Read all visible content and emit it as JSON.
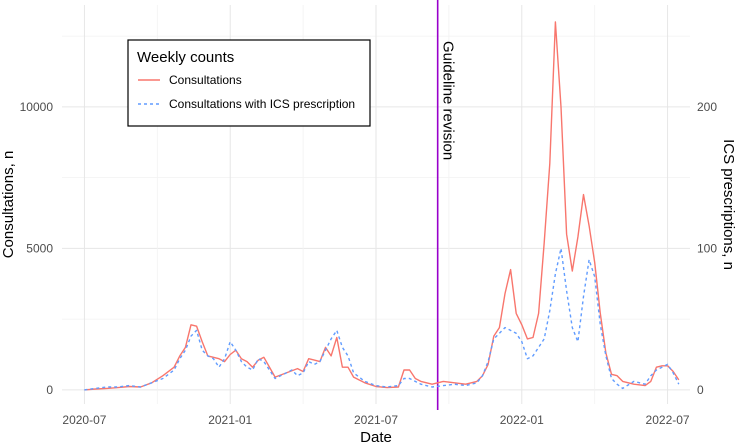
{
  "chart_data": {
    "type": "line",
    "x_ticks": [
      {
        "label": "2020-07",
        "t": 0
      },
      {
        "label": "2021-01",
        "t": 26
      },
      {
        "label": "2021-07",
        "t": 52
      },
      {
        "label": "2022-01",
        "t": 78
      },
      {
        "label": "2022-07",
        "t": 104
      }
    ],
    "xlabel": "Date",
    "ylabel_left": "Consultations, n",
    "ylabel_right": "ICS prescriptions, n",
    "y_left_ticks": [
      0,
      5000,
      10000
    ],
    "y_left_tick_labels": [
      "0",
      "5000",
      "10000"
    ],
    "y_right_ticks": [
      0,
      100,
      200
    ],
    "y_right_tick_labels": [
      "0",
      "100",
      "200"
    ],
    "ylim_left": [
      -500,
      13600
    ],
    "ylim_right": [
      -10,
      272
    ],
    "xlim": [
      -4,
      108
    ],
    "vline": {
      "t": 63,
      "label": "Guideline revision",
      "color": "#9900cc"
    },
    "legend": {
      "title": "Weekly counts",
      "placement": "top-left",
      "entries": [
        {
          "label": "Consultations",
          "color": "#f8766d",
          "style": "solid"
        },
        {
          "label": "Consultations with ICS prescription",
          "color": "#619cff",
          "style": "dashed"
        }
      ]
    },
    "series": [
      {
        "name": "Consultations",
        "axis": "left",
        "color": "#f8766d",
        "style": "solid",
        "points": [
          [
            0,
            0
          ],
          [
            2,
            30
          ],
          [
            4,
            50
          ],
          [
            6,
            80
          ],
          [
            8,
            120
          ],
          [
            10,
            100
          ],
          [
            12,
            250
          ],
          [
            14,
            500
          ],
          [
            16,
            800
          ],
          [
            17,
            1200
          ],
          [
            18,
            1500
          ],
          [
            19,
            2300
          ],
          [
            20,
            2250
          ],
          [
            21,
            1700
          ],
          [
            22,
            1200
          ],
          [
            24,
            1100
          ],
          [
            25,
            1000
          ],
          [
            26,
            1250
          ],
          [
            27,
            1400
          ],
          [
            28,
            1100
          ],
          [
            29,
            1000
          ],
          [
            30,
            800
          ],
          [
            31,
            1050
          ],
          [
            32,
            1150
          ],
          [
            34,
            450
          ],
          [
            36,
            600
          ],
          [
            38,
            750
          ],
          [
            39,
            650
          ],
          [
            40,
            1100
          ],
          [
            41,
            1050
          ],
          [
            42,
            1000
          ],
          [
            43,
            1500
          ],
          [
            44,
            1200
          ],
          [
            45,
            1850
          ],
          [
            46,
            800
          ],
          [
            47,
            800
          ],
          [
            48,
            450
          ],
          [
            50,
            250
          ],
          [
            52,
            120
          ],
          [
            54,
            80
          ],
          [
            56,
            100
          ],
          [
            57,
            700
          ],
          [
            58,
            700
          ],
          [
            59,
            400
          ],
          [
            60,
            300
          ],
          [
            62,
            200
          ],
          [
            64,
            300
          ],
          [
            66,
            250
          ],
          [
            68,
            200
          ],
          [
            70,
            300
          ],
          [
            71,
            500
          ],
          [
            72,
            900
          ],
          [
            73,
            1900
          ],
          [
            74,
            2200
          ],
          [
            75,
            3400
          ],
          [
            76,
            4250
          ],
          [
            77,
            2700
          ],
          [
            78,
            2300
          ],
          [
            79,
            1800
          ],
          [
            80,
            1850
          ],
          [
            81,
            2700
          ],
          [
            82,
            5200
          ],
          [
            83,
            8000
          ],
          [
            84,
            13000
          ],
          [
            85,
            10000
          ],
          [
            86,
            5500
          ],
          [
            87,
            4200
          ],
          [
            88,
            5400
          ],
          [
            89,
            6900
          ],
          [
            90,
            5800
          ],
          [
            91,
            4500
          ],
          [
            92,
            2700
          ],
          [
            93,
            1300
          ],
          [
            94,
            550
          ],
          [
            95,
            500
          ],
          [
            96,
            300
          ],
          [
            98,
            200
          ],
          [
            100,
            150
          ],
          [
            101,
            300
          ],
          [
            102,
            800
          ],
          [
            103,
            850
          ],
          [
            104,
            850
          ],
          [
            105,
            650
          ],
          [
            106,
            350
          ]
        ]
      },
      {
        "name": "Consultations with ICS prescription",
        "axis": "right",
        "color": "#619cff",
        "style": "dashed",
        "points": [
          [
            0,
            0
          ],
          [
            2,
            1
          ],
          [
            4,
            2
          ],
          [
            6,
            2
          ],
          [
            8,
            3
          ],
          [
            10,
            2
          ],
          [
            12,
            5
          ],
          [
            14,
            8
          ],
          [
            16,
            14
          ],
          [
            17,
            22
          ],
          [
            18,
            28
          ],
          [
            19,
            38
          ],
          [
            20,
            42
          ],
          [
            21,
            28
          ],
          [
            22,
            24
          ],
          [
            23,
            22
          ],
          [
            24,
            16
          ],
          [
            25,
            22
          ],
          [
            26,
            34
          ],
          [
            27,
            28
          ],
          [
            28,
            20
          ],
          [
            29,
            16
          ],
          [
            30,
            14
          ],
          [
            31,
            22
          ],
          [
            32,
            20
          ],
          [
            34,
            8
          ],
          [
            36,
            12
          ],
          [
            37,
            14
          ],
          [
            38,
            10
          ],
          [
            39,
            12
          ],
          [
            40,
            20
          ],
          [
            41,
            18
          ],
          [
            42,
            20
          ],
          [
            43,
            28
          ],
          [
            44,
            36
          ],
          [
            45,
            42
          ],
          [
            46,
            30
          ],
          [
            47,
            24
          ],
          [
            48,
            12
          ],
          [
            50,
            6
          ],
          [
            52,
            3
          ],
          [
            54,
            2
          ],
          [
            56,
            3
          ],
          [
            57,
            8
          ],
          [
            58,
            8
          ],
          [
            59,
            6
          ],
          [
            60,
            4
          ],
          [
            62,
            2
          ],
          [
            64,
            3
          ],
          [
            66,
            4
          ],
          [
            68,
            3
          ],
          [
            70,
            5
          ],
          [
            71,
            10
          ],
          [
            72,
            20
          ],
          [
            73,
            36
          ],
          [
            74,
            40
          ],
          [
            75,
            44
          ],
          [
            76,
            42
          ],
          [
            77,
            40
          ],
          [
            78,
            34
          ],
          [
            79,
            22
          ],
          [
            80,
            24
          ],
          [
            81,
            30
          ],
          [
            82,
            36
          ],
          [
            83,
            56
          ],
          [
            84,
            82
          ],
          [
            85,
            100
          ],
          [
            86,
            70
          ],
          [
            87,
            44
          ],
          [
            88,
            34
          ],
          [
            89,
            66
          ],
          [
            90,
            92
          ],
          [
            91,
            80
          ],
          [
            92,
            46
          ],
          [
            93,
            24
          ],
          [
            94,
            8
          ],
          [
            95,
            4
          ],
          [
            96,
            1
          ],
          [
            98,
            6
          ],
          [
            100,
            4
          ],
          [
            101,
            10
          ],
          [
            102,
            14
          ],
          [
            103,
            16
          ],
          [
            104,
            18
          ],
          [
            105,
            12
          ],
          [
            106,
            4
          ]
        ]
      }
    ]
  }
}
